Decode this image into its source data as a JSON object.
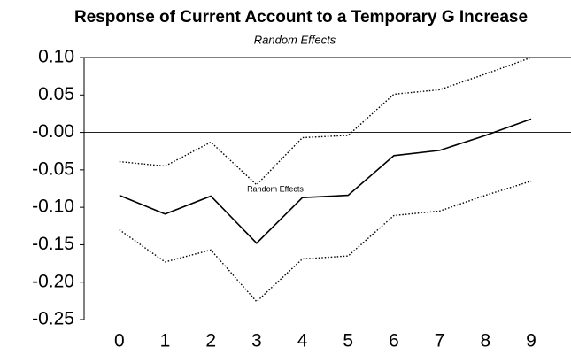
{
  "chart_data": {
    "type": "line",
    "title": "Response of Current Account to a Temporary G Increase",
    "subtitle": "Random Effects",
    "annotation": "Random Effects",
    "x": [
      0,
      1,
      2,
      3,
      4,
      5,
      6,
      7,
      8,
      9
    ],
    "xlim": [
      -0.77,
      9.87
    ],
    "xticks": [
      0,
      1,
      2,
      3,
      4,
      5,
      6,
      7,
      8,
      9
    ],
    "ylim": [
      -0.25,
      0.1
    ],
    "yticks": [
      {
        "value": 0.1,
        "label": "0.10"
      },
      {
        "value": 0.05,
        "label": "0.05"
      },
      {
        "value": 0,
        "label": "-0.00"
      },
      {
        "value": -0.05,
        "label": "-0.05"
      },
      {
        "value": -0.1,
        "label": "-0.10"
      },
      {
        "value": -0.15,
        "label": "-0.15"
      },
      {
        "value": -0.2,
        "label": "-0.20"
      },
      {
        "value": -0.25,
        "label": "-0.25"
      }
    ],
    "zero_line": true,
    "series": [
      {
        "color": "#000000",
        "dash": false,
        "values": [
          -0.084,
          -0.109,
          -0.085,
          -0.148,
          -0.087,
          -0.084,
          -0.031,
          -0.024,
          -0.004,
          0.018
        ]
      },
      {
        "color": "#000000",
        "dash": true,
        "values": [
          -0.039,
          -0.045,
          -0.013,
          -0.07,
          -0.007,
          -0.004,
          0.051,
          0.057,
          0.078,
          0.1
        ]
      },
      {
        "color": "#000000",
        "dash": true,
        "values": [
          -0.13,
          -0.173,
          -0.157,
          -0.226,
          -0.169,
          -0.165,
          -0.111,
          -0.105,
          -0.084,
          -0.065
        ]
      }
    ]
  }
}
